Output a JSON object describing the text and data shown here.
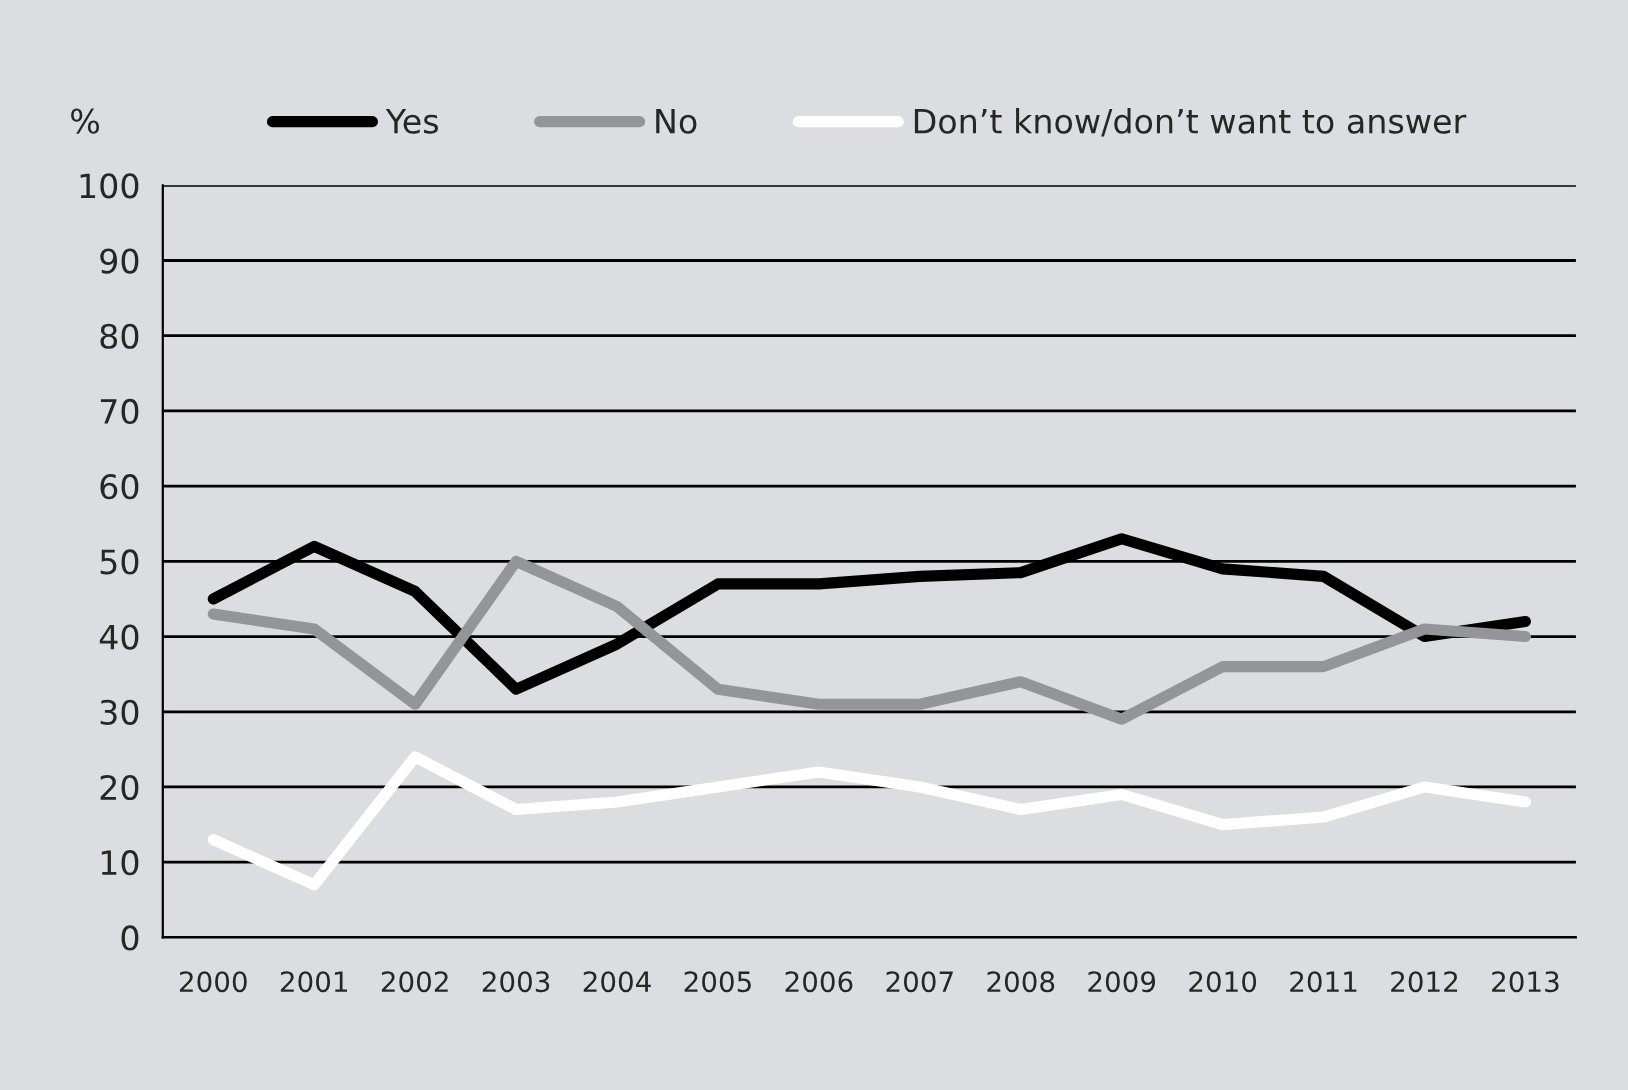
{
  "chart_data": {
    "type": "line",
    "ylabel": "%",
    "categories": [
      "2000",
      "2001",
      "2002",
      "2003",
      "2004",
      "2005",
      "2006",
      "2007",
      "2008",
      "2009",
      "2010",
      "2011",
      "2012",
      "2013"
    ],
    "series": [
      {
        "name": "Yes",
        "color": "#000000",
        "values": [
          45,
          52,
          46,
          33,
          39,
          47,
          47,
          48,
          48.5,
          53,
          49,
          48,
          40,
          42
        ]
      },
      {
        "name": "No",
        "color": "#939598",
        "values": [
          43,
          41,
          31,
          50,
          44,
          33,
          31,
          31,
          34,
          29,
          36,
          36,
          41,
          40
        ]
      },
      {
        "name": "Don’t know/don’t want to answer",
        "color": "#ffffff",
        "values": [
          13,
          7,
          24,
          17,
          18,
          20,
          22,
          20,
          17,
          19,
          15,
          16,
          20,
          18
        ]
      }
    ],
    "ylim": [
      0,
      100
    ],
    "yticks": [
      0,
      10,
      20,
      30,
      40,
      50,
      60,
      70,
      80,
      90,
      100
    ],
    "grid": "y",
    "legend": "top",
    "line_style": "solid",
    "marker": "none"
  }
}
